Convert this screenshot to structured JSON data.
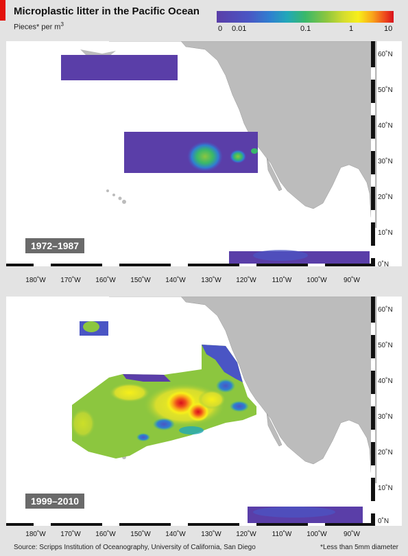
{
  "title": "Microplastic litter in the Pacific Ocean",
  "subtitle_main": "Pieces* per m",
  "subtitle_exp": "3",
  "legend": {
    "scale": "log",
    "ticks": [
      "0",
      "0.01",
      "0.1",
      "1",
      "10"
    ],
    "colors": [
      "#5a3ea8",
      "#4a55c4",
      "#22a8b8",
      "#39b86a",
      "#8cc63f",
      "#f7ef1a",
      "#f9a51a",
      "#d8101c"
    ]
  },
  "panels": [
    {
      "period": "1972–1987"
    },
    {
      "period": "1999–2010"
    }
  ],
  "lat_labels": [
    "60˚N",
    "50˚N",
    "40˚N",
    "30˚N",
    "20˚N",
    "10˚N",
    "0˚N"
  ],
  "lon_labels": [
    "180˚W",
    "170˚W",
    "160˚W",
    "150˚W",
    "140˚W",
    "130˚W",
    "120˚W",
    "110˚W",
    "100˚W",
    "90˚W"
  ],
  "source": "Source: Scripps Institution of Oceanography, University of California, San Diego",
  "footnote": "*Less than 5mm diameter"
}
